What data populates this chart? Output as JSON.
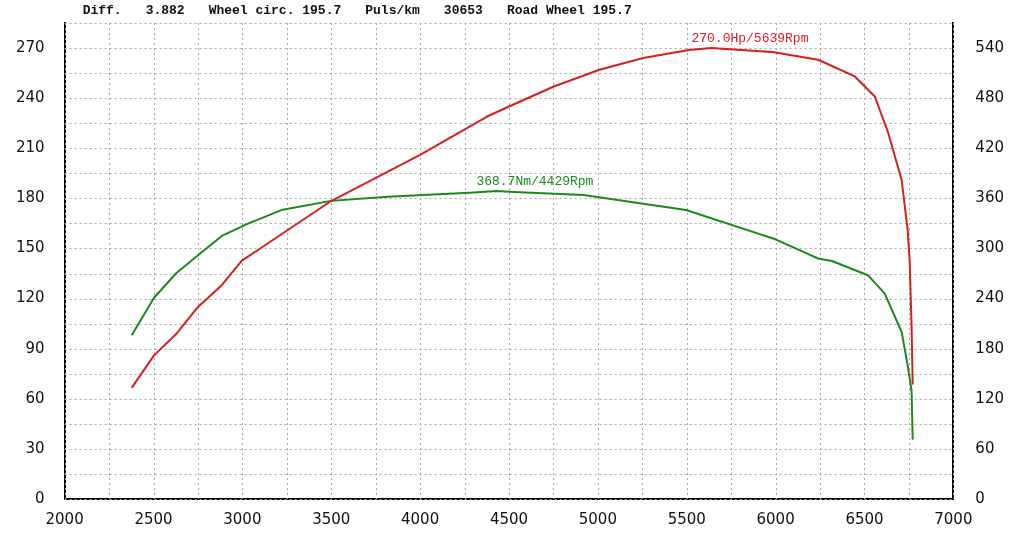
{
  "chart_data": {
    "type": "line",
    "annotations": [
      "Diff.",
      "3.882",
      "Wheel circ. 195.7",
      "Puls/km",
      "30653",
      "Road Wheel 195.7",
      {
        "text": "270.0Hp/5639Rpm",
        "x": 5639,
        "y": 270
      },
      {
        "text": "368.7Nm/4429Rpm",
        "x": 4429,
        "y": 184.35
      }
    ],
    "series": [
      {
        "color": "#d42020",
        "x": [
          2380,
          2503,
          2626,
          2750,
          2884,
          2996,
          3499,
          4000,
          4377,
          4500,
          4752,
          5009,
          5255,
          5512,
          5639,
          5982,
          6239,
          6446,
          6558,
          6631,
          6709,
          6743,
          6754,
          6765,
          6771
        ],
        "values": [
          67,
          86,
          98.6,
          115,
          128,
          142.6,
          178.4,
          206,
          229,
          235,
          247,
          257,
          264,
          268.8,
          270,
          267.6,
          263,
          253,
          241,
          220,
          191,
          161,
          142.6,
          103,
          69
        ]
      },
      {
        "color": "#1a8a1a",
        "axis": "y2",
        "x": [
          2380,
          2503,
          2626,
          2699,
          2884,
          3035,
          3219,
          3499,
          3818,
          4304,
          4429,
          4919,
          5496,
          5999,
          6239,
          6317,
          6519,
          6614,
          6709,
          6743,
          6765,
          6771
        ],
        "values": [
          197,
          241,
          270,
          283,
          315,
          330,
          346,
          357,
          362,
          367,
          368.7,
          364,
          346,
          311,
          288,
          285,
          268,
          246,
          200,
          160,
          129,
          72
        ]
      }
    ],
    "xlim": [
      2000,
      7000
    ],
    "xticks": [
      2000,
      {
        "value": 2250,
        "label": null
      },
      2500,
      {
        "value": 2750,
        "label": null
      },
      3000,
      {
        "value": 3250,
        "label": null
      },
      3500,
      {
        "value": 3750,
        "label": null
      },
      4000,
      {
        "value": 4250,
        "label": null
      },
      4500,
      {
        "value": 4750,
        "label": null
      },
      5000,
      {
        "value": 5250,
        "label": null
      },
      5500,
      {
        "value": 5750,
        "label": null
      },
      6000,
      {
        "value": 6250,
        "label": null
      },
      6500,
      {
        "value": 6750,
        "label": null
      },
      7000
    ],
    "ylim": [
      0,
      285
    ],
    "yticks": [
      0,
      {
        "value": 15,
        "label": null
      },
      30,
      {
        "value": 45,
        "label": null
      },
      60,
      {
        "value": 75,
        "label": null
      },
      90,
      {
        "value": 105,
        "label": null
      },
      120,
      {
        "value": 135,
        "label": null
      },
      150,
      {
        "value": 165,
        "label": null
      },
      180,
      {
        "value": 195,
        "label": null
      },
      210,
      {
        "value": 225,
        "label": null
      },
      240,
      {
        "value": 255,
        "label": null
      },
      270,
      {
        "value": 285,
        "label": null
      }
    ],
    "y2lim": [
      0,
      570
    ],
    "y2ticks": [
      0,
      60,
      120,
      180,
      240,
      300,
      360,
      420,
      480,
      540
    ],
    "grid": true,
    "legend": false,
    "marker": "none",
    "line_style": "solid"
  }
}
